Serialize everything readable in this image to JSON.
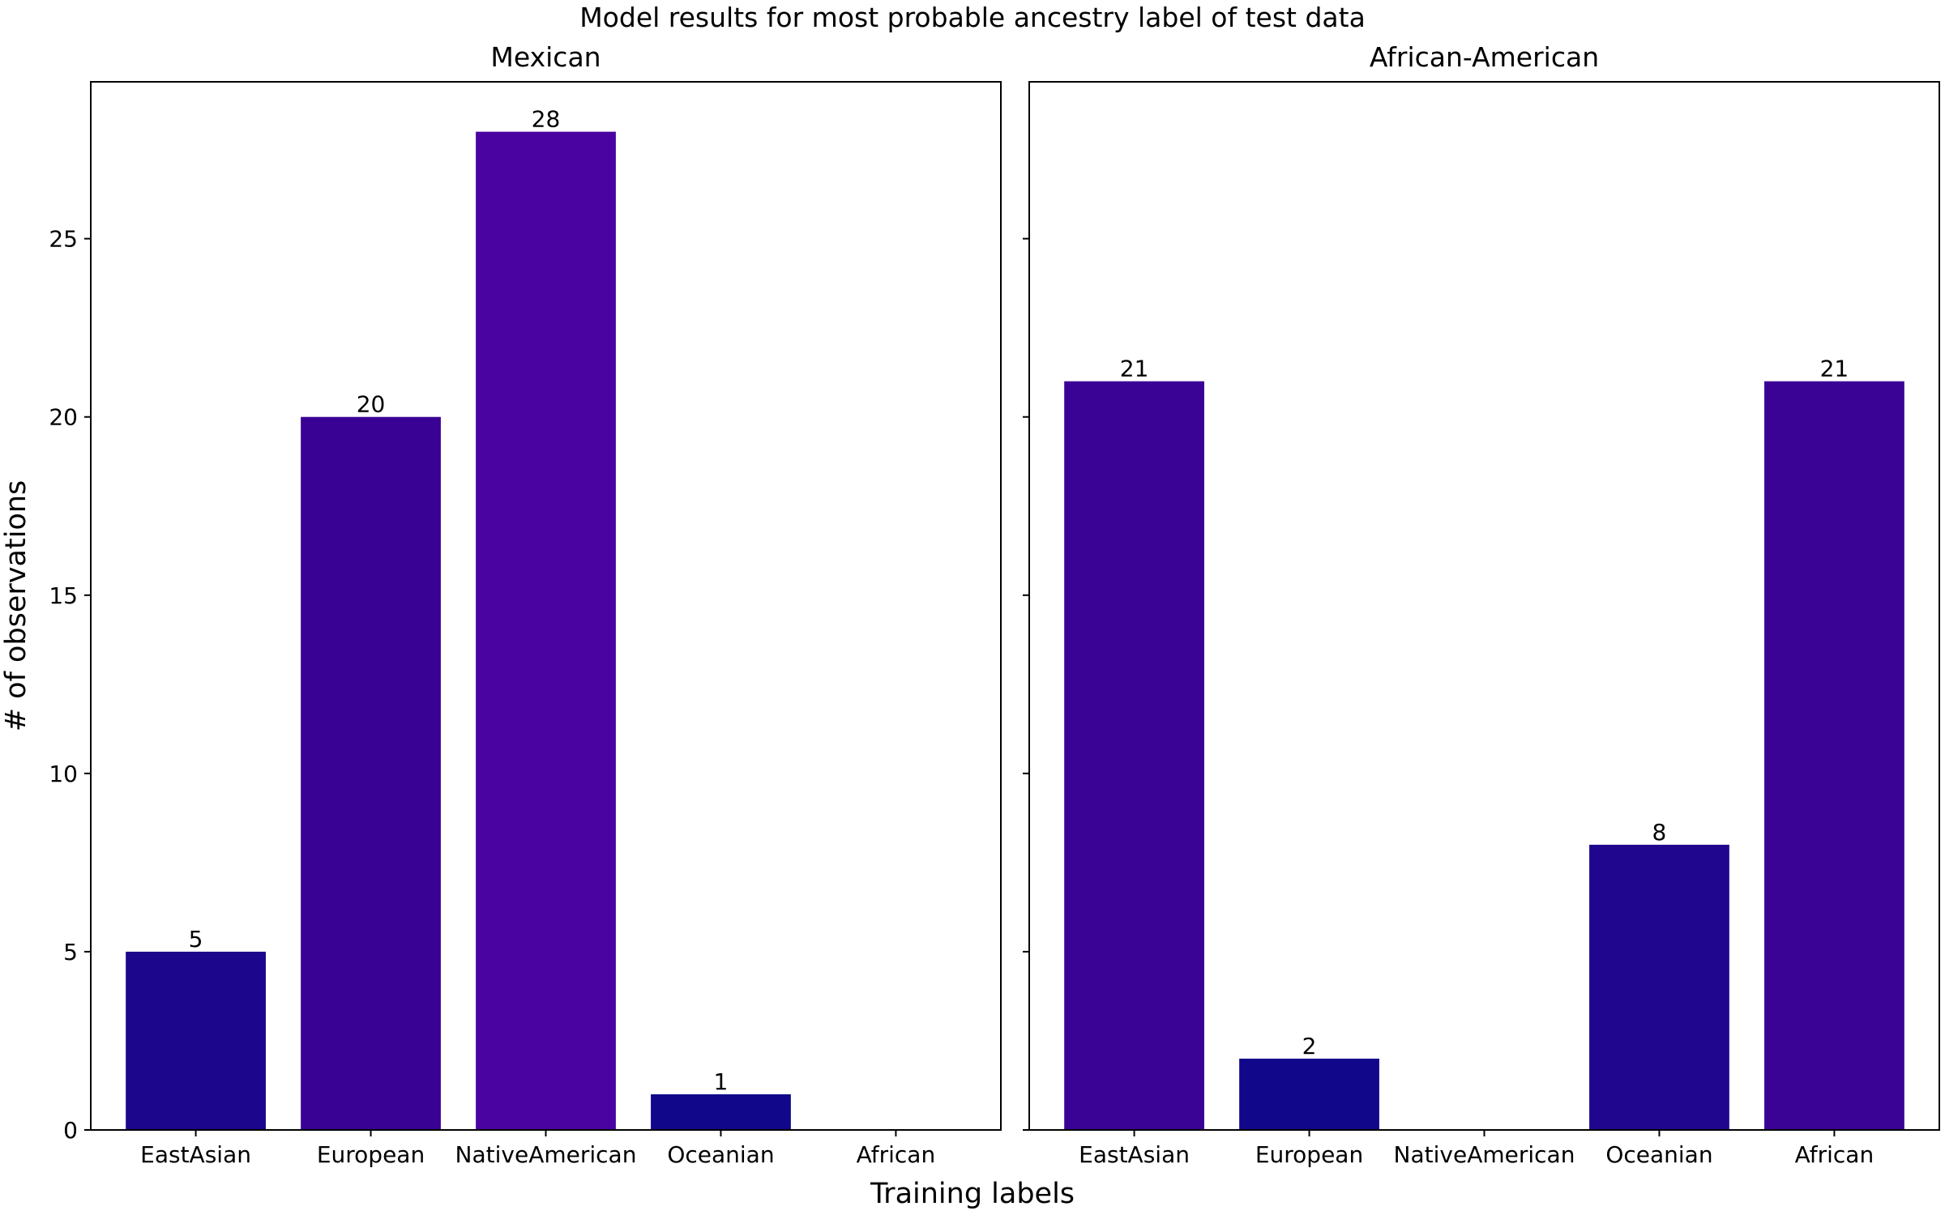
{
  "chart_data": {
    "type": "bar",
    "title": "Model results for most probable ancestry label of test data",
    "xlabel": "Training labels",
    "ylabel": "# of observations",
    "ylim": [
      0,
      29.4
    ],
    "yticks": [
      0,
      5,
      10,
      15,
      20,
      25
    ],
    "shared_y": true,
    "grid": false,
    "legend": "none",
    "categories": [
      "EastAsian",
      "European",
      "NativeAmerican",
      "Oceanian",
      "African"
    ],
    "panels": [
      {
        "title": "Mexican",
        "values": [
          5,
          20,
          28,
          1,
          0
        ],
        "colors": [
          "#1b068c",
          "#390294",
          "#4a02a0",
          "#10078a",
          ""
        ]
      },
      {
        "title": "African-American",
        "values": [
          21,
          2,
          0,
          8,
          21
        ],
        "colors": [
          "#3b0296",
          "#10078a",
          "",
          "#20068f",
          "#3b0296"
        ]
      }
    ]
  }
}
